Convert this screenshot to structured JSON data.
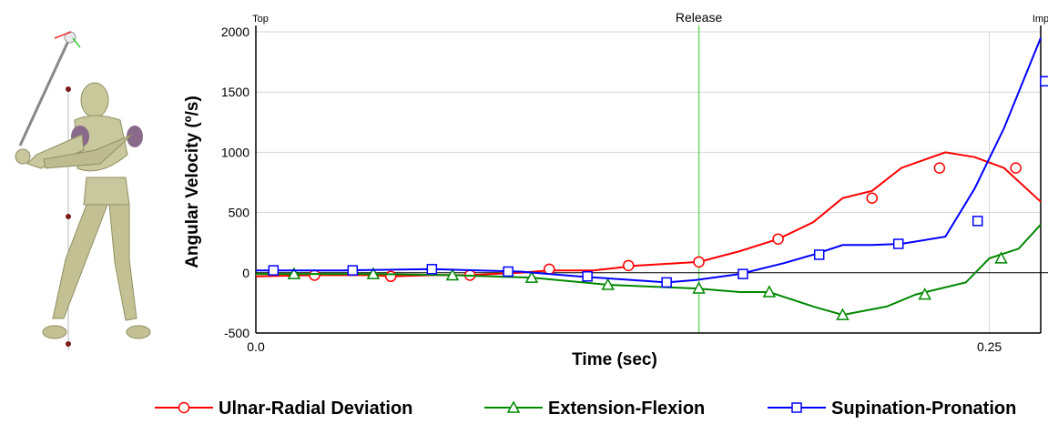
{
  "chart_data": {
    "type": "line",
    "xlabel": "Time (sec)",
    "ylabel": "Angular Velocity (º/s)",
    "xlim": [
      0,
      0.2675
    ],
    "ylim": [
      -500,
      2000
    ],
    "x_ticks": [
      "0.0",
      "0.25"
    ],
    "x_tick_values": [
      0,
      0.25
    ],
    "y_ticks": [
      "2000",
      "1500",
      "1000",
      "500",
      "0",
      "-500"
    ],
    "y_tick_values": [
      2000,
      1500,
      1000,
      500,
      0,
      -500
    ],
    "grid": true,
    "legend_position": "bottom",
    "markers": [
      {
        "label": "Top",
        "x": 0,
        "color": "#000000"
      },
      {
        "label": "Release",
        "x": 0.151,
        "color": "#66dd66"
      },
      {
        "label": "Imp",
        "x": 0.2675,
        "color": "#000000"
      }
    ],
    "series": [
      {
        "name": "Ulnar-Radial Deviation",
        "color": "#ff0000",
        "marker": "circle",
        "x": [
          0,
          0.02,
          0.04,
          0.046,
          0.06,
          0.073,
          0.09,
          0.1,
          0.115,
          0.13,
          0.151,
          0.165,
          0.178,
          0.19,
          0.2,
          0.21,
          0.22,
          0.235,
          0.245,
          0.255,
          0.2675
        ],
        "y": [
          -30,
          -20,
          -20,
          -30,
          -20,
          -20,
          0,
          20,
          20,
          60,
          90,
          180,
          280,
          420,
          620,
          680,
          870,
          1000,
          960,
          870,
          590
        ],
        "marker_x": [
          0.02,
          0.046,
          0.073,
          0.1,
          0.127,
          0.151,
          0.178,
          0.21,
          0.233,
          0.259
        ],
        "marker_y": [
          -20,
          -30,
          -20,
          30,
          60,
          90,
          280,
          620,
          870,
          870
        ]
      },
      {
        "name": "Extension-Flexion",
        "color": "#008800",
        "marker": "triangle",
        "x": [
          0,
          0.013,
          0.04,
          0.067,
          0.094,
          0.12,
          0.15,
          0.165,
          0.175,
          0.19,
          0.2,
          0.215,
          0.225,
          0.242,
          0.25,
          0.26,
          0.2675
        ],
        "y": [
          -10,
          -10,
          -10,
          -20,
          -40,
          -100,
          -130,
          -160,
          -160,
          -280,
          -350,
          -280,
          -180,
          -80,
          120,
          200,
          400
        ],
        "marker_x": [
          0.013,
          0.04,
          0.067,
          0.094,
          0.12,
          0.151,
          0.175,
          0.2,
          0.228,
          0.254
        ],
        "marker_y": [
          -10,
          -10,
          -20,
          -40,
          -100,
          -130,
          -160,
          -350,
          -180,
          120
        ]
      },
      {
        "name": "Supination-Pronation",
        "color": "#0000ff",
        "marker": "square",
        "x": [
          0,
          0.03,
          0.06,
          0.09,
          0.11,
          0.14,
          0.15,
          0.165,
          0.18,
          0.19,
          0.2,
          0.21,
          0.22,
          0.235,
          0.245,
          0.255,
          0.2675
        ],
        "y": [
          20,
          20,
          30,
          10,
          -30,
          -80,
          -60,
          -10,
          80,
          150,
          230,
          230,
          240,
          300,
          700,
          1200,
          1950
        ],
        "marker_x": [
          0.006,
          0.033,
          0.06,
          0.086,
          0.113,
          0.14,
          0.166,
          0.192,
          0.219,
          0.246,
          0.269
        ],
        "marker_y": [
          20,
          20,
          30,
          10,
          -30,
          -80,
          -10,
          150,
          240,
          430,
          1590
        ]
      }
    ]
  }
}
